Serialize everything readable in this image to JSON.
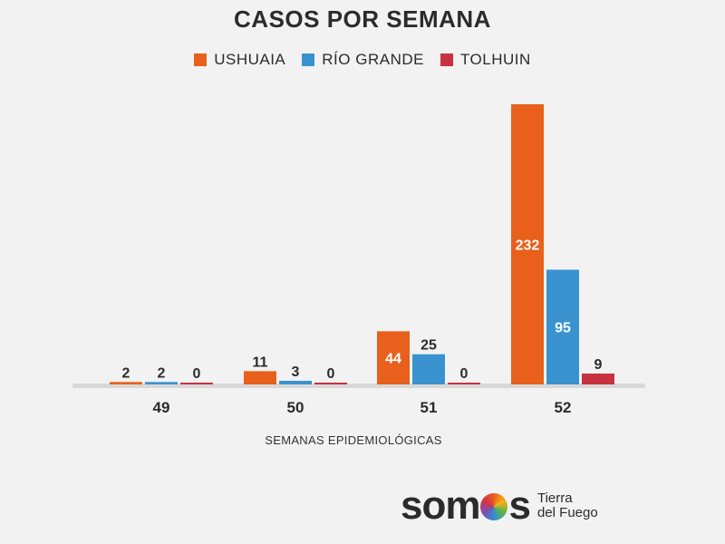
{
  "chart_data": {
    "type": "bar",
    "title": "CASOS POR SEMANA",
    "xlabel": "SEMANAS EPIDEMIOLÓGICAS",
    "ylabel": "",
    "categories": [
      "49",
      "50",
      "51",
      "52"
    ],
    "series": [
      {
        "name": "USHUAIA",
        "color": "#e8601c",
        "values": [
          2,
          11,
          44,
          232
        ]
      },
      {
        "name": "RÍO GRANDE",
        "color": "#3a93cf",
        "values": [
          2,
          3,
          25,
          95
        ]
      },
      {
        "name": "TOLHUIN",
        "color": "#c8313f",
        "values": [
          0,
          0,
          0,
          9
        ]
      }
    ],
    "ylim": [
      0,
      232
    ],
    "grid": false,
    "legend": "top"
  },
  "branding": {
    "logo_prefix": "som",
    "logo_suffix": "s",
    "logo_line1": "Tierra",
    "logo_line2": "del Fuego"
  }
}
